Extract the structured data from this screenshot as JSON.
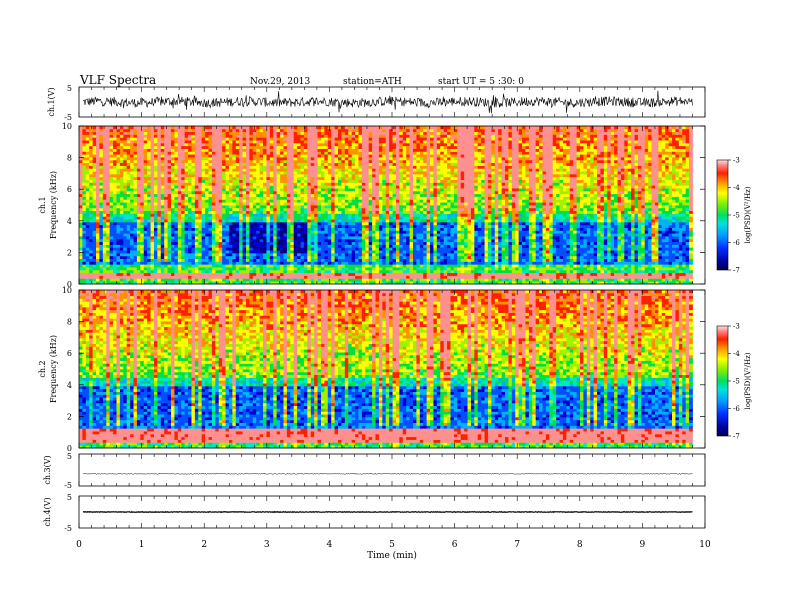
{
  "header": {
    "title": "VLF  Spectra",
    "date": "Nov.29, 2013",
    "station": "station=ATH",
    "start": "start  UT  =   5  :30: 0"
  },
  "chart_data": {
    "type": "heatmap",
    "xlabel": "Time  (min)",
    "xlim": [
      0,
      10
    ],
    "x_ticks": [
      "0",
      "1",
      "2",
      "3",
      "4",
      "5",
      "6",
      "7",
      "8",
      "9",
      "10"
    ],
    "data_end_min": 9.8,
    "panels": [
      {
        "id": "ch1-waveform",
        "kind": "waveform",
        "ylabel": "ch.1(V)",
        "ylim": [
          -5,
          5
        ],
        "y_ticks": [
          "5",
          "-5"
        ],
        "noise_level": "high"
      },
      {
        "id": "ch1-spectrogram",
        "kind": "spectrogram",
        "ylabel_top": "ch.1",
        "ylabel": "Frequency  (kHz)",
        "ylim": [
          0,
          10
        ],
        "y_ticks": [
          "0",
          "2",
          "4",
          "6",
          "8",
          "10"
        ],
        "colorbar": {
          "label": "log(PSD)(V²/Hz)",
          "range": [
            -7,
            -3
          ],
          "ticks": [
            "-3",
            "-4",
            "-5",
            "-6",
            "-7"
          ]
        },
        "features": {
          "sferics_band_khz": [
            4.5,
            10
          ],
          "quiet_region_khz": [
            2,
            4
          ],
          "quiet_region_min": [
            2.4,
            3.8
          ],
          "power_line_khz": [
            0.4,
            0.8
          ]
        }
      },
      {
        "id": "ch2-spectrogram",
        "kind": "spectrogram",
        "ylabel_top": "ch.2",
        "ylabel": "Frequency  (kHz)",
        "ylim": [
          0,
          10
        ],
        "y_ticks": [
          "0",
          "2",
          "4",
          "6",
          "8",
          "10"
        ],
        "colorbar": {
          "label": "log(PSD)(V²/Hz)",
          "range": [
            -7,
            -3
          ],
          "ticks": [
            "-3",
            "-4",
            "-5",
            "-6",
            "-7"
          ]
        },
        "features": {
          "sferics_band_khz": [
            4.5,
            10
          ],
          "quiet_region_khz": [
            2,
            4
          ],
          "power_line_khz": [
            0.4,
            1.2
          ]
        }
      },
      {
        "id": "ch3-waveform",
        "kind": "waveform",
        "ylabel": "ch.3(V)",
        "ylim": [
          -5,
          5
        ],
        "y_ticks": [
          "5",
          "-5"
        ],
        "noise_level": "low"
      },
      {
        "id": "ch4-waveform",
        "kind": "waveform",
        "ylabel": "ch.4(V)",
        "ylim": [
          -5,
          5
        ],
        "y_ticks": [
          "5",
          "-5"
        ],
        "noise_level": "thick"
      }
    ],
    "colormap": [
      "#000070",
      "#0000c8",
      "#0050ff",
      "#00b0ff",
      "#00e8c0",
      "#00e040",
      "#a0f000",
      "#ffff00",
      "#ff9000",
      "#ff2000",
      "#ff9090"
    ]
  }
}
